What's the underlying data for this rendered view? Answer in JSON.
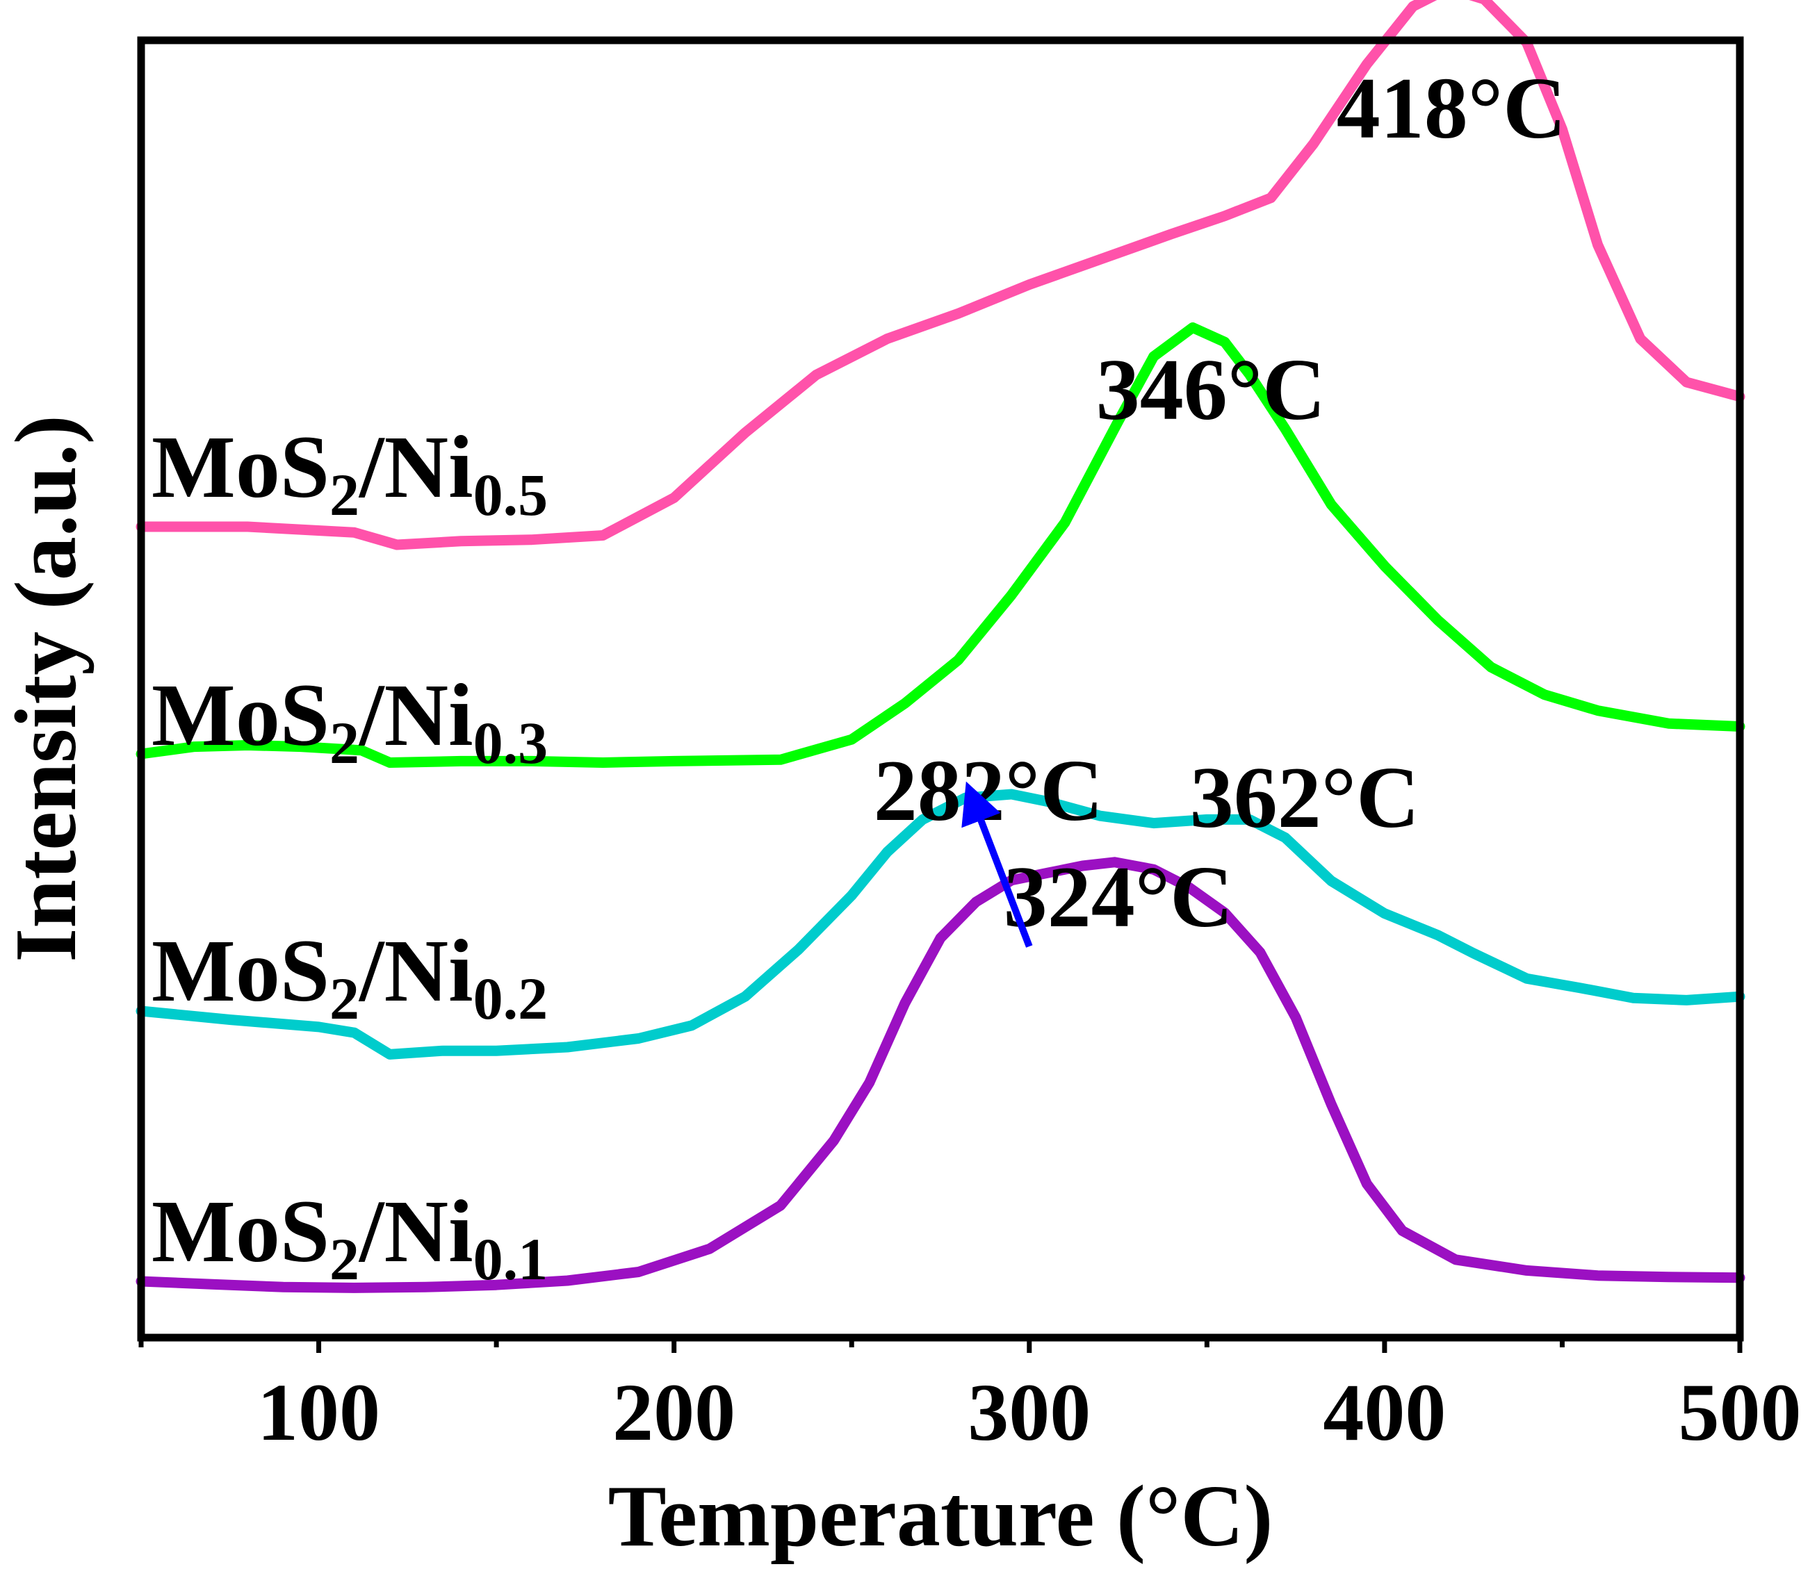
{
  "chart_data": {
    "type": "line",
    "title": "",
    "xlabel": "Temperature (°C)",
    "ylabel": "Intensity (a.u.)",
    "xlim": [
      50,
      500
    ],
    "x_ticks": [
      100,
      200,
      300,
      400,
      500
    ],
    "x_tick_labels": [
      "100",
      "200",
      "300",
      "400",
      "500"
    ],
    "y_ticks_shown": false,
    "grid": false,
    "series": [
      {
        "name": "MoS2/Ni0.1",
        "label_main": "MoS",
        "label_sub1": "2",
        "label_mid": "/Ni",
        "label_sub2": "0.1",
        "color": "#9B10C2",
        "points": [
          [
            50,
            0.25
          ],
          [
            70,
            0.21
          ],
          [
            90,
            0.17
          ],
          [
            110,
            0.16
          ],
          [
            130,
            0.17
          ],
          [
            150,
            0.2
          ],
          [
            170,
            0.26
          ],
          [
            190,
            0.38
          ],
          [
            210,
            0.7
          ],
          [
            230,
            1.3
          ],
          [
            245,
            2.2
          ],
          [
            255,
            3.0
          ],
          [
            265,
            4.1
          ],
          [
            275,
            5.0
          ],
          [
            285,
            5.5
          ],
          [
            295,
            5.8
          ],
          [
            305,
            5.9
          ],
          [
            315,
            6.0
          ],
          [
            324,
            6.05
          ],
          [
            335,
            5.95
          ],
          [
            345,
            5.7
          ],
          [
            355,
            5.35
          ],
          [
            365,
            4.8
          ],
          [
            375,
            3.9
          ],
          [
            385,
            2.7
          ],
          [
            395,
            1.6
          ],
          [
            405,
            0.95
          ],
          [
            420,
            0.55
          ],
          [
            440,
            0.4
          ],
          [
            460,
            0.33
          ],
          [
            480,
            0.31
          ],
          [
            500,
            0.3
          ]
        ]
      },
      {
        "name": "MoS2/Ni0.2",
        "label_main": "MoS",
        "label_sub1": "2",
        "label_mid": "/Ni",
        "label_sub2": "0.2",
        "color": "#00CCCC",
        "points": [
          [
            50,
            0
          ],
          [
            75,
            -0.12
          ],
          [
            100,
            -0.22
          ],
          [
            110,
            -0.3
          ],
          [
            120,
            -0.6
          ],
          [
            135,
            -0.55
          ],
          [
            150,
            -0.55
          ],
          [
            170,
            -0.5
          ],
          [
            190,
            -0.38
          ],
          [
            205,
            -0.2
          ],
          [
            220,
            0.2
          ],
          [
            235,
            0.85
          ],
          [
            250,
            1.6
          ],
          [
            260,
            2.2
          ],
          [
            270,
            2.65
          ],
          [
            282,
            2.95
          ],
          [
            295,
            3.0
          ],
          [
            305,
            2.9
          ],
          [
            320,
            2.7
          ],
          [
            335,
            2.6
          ],
          [
            350,
            2.65
          ],
          [
            362,
            2.65
          ],
          [
            372,
            2.4
          ],
          [
            385,
            1.8
          ],
          [
            400,
            1.35
          ],
          [
            415,
            1.05
          ],
          [
            425,
            0.8
          ],
          [
            440,
            0.45
          ],
          [
            455,
            0.32
          ],
          [
            470,
            0.18
          ],
          [
            485,
            0.15
          ],
          [
            500,
            0.2
          ]
        ]
      },
      {
        "name": "MoS2/Ni0.3",
        "label_main": "MoS",
        "label_sub1": "2",
        "label_mid": "/Ni",
        "label_sub2": "0.3",
        "color": "#00FF00",
        "points": [
          [
            50,
            0
          ],
          [
            65,
            0.1
          ],
          [
            80,
            0.12
          ],
          [
            95,
            0.1
          ],
          [
            112,
            0.05
          ],
          [
            120,
            -0.12
          ],
          [
            140,
            -0.1
          ],
          [
            160,
            -0.1
          ],
          [
            180,
            -0.12
          ],
          [
            200,
            -0.1
          ],
          [
            230,
            -0.08
          ],
          [
            250,
            0.2
          ],
          [
            265,
            0.7
          ],
          [
            280,
            1.3
          ],
          [
            295,
            2.2
          ],
          [
            310,
            3.2
          ],
          [
            325,
            4.6
          ],
          [
            335,
            5.5
          ],
          [
            346,
            5.9
          ],
          [
            355,
            5.7
          ],
          [
            362,
            5.25
          ],
          [
            372,
            4.5
          ],
          [
            385,
            3.45
          ],
          [
            400,
            2.6
          ],
          [
            415,
            1.85
          ],
          [
            430,
            1.2
          ],
          [
            445,
            0.82
          ],
          [
            460,
            0.6
          ],
          [
            480,
            0.42
          ],
          [
            500,
            0.38
          ]
        ]
      },
      {
        "name": "MoS2/Ni0.5",
        "label_main": "MoS",
        "label_sub1": "2",
        "label_mid": "/Ni",
        "label_sub2": "0.5",
        "color": "#FF52AA",
        "points": [
          [
            50,
            0
          ],
          [
            80,
            0
          ],
          [
            110,
            -0.08
          ],
          [
            122,
            -0.25
          ],
          [
            140,
            -0.2
          ],
          [
            160,
            -0.18
          ],
          [
            180,
            -0.12
          ],
          [
            200,
            0.4
          ],
          [
            220,
            1.3
          ],
          [
            240,
            2.1
          ],
          [
            260,
            2.6
          ],
          [
            280,
            2.95
          ],
          [
            300,
            3.35
          ],
          [
            320,
            3.7
          ],
          [
            340,
            4.05
          ],
          [
            355,
            4.3
          ],
          [
            368,
            4.55
          ],
          [
            380,
            5.3
          ],
          [
            395,
            6.4
          ],
          [
            408,
            7.2
          ],
          [
            418,
            7.45
          ],
          [
            428,
            7.3
          ],
          [
            440,
            6.7
          ],
          [
            450,
            5.5
          ],
          [
            460,
            3.9
          ],
          [
            472,
            2.6
          ],
          [
            485,
            2.0
          ],
          [
            500,
            1.8
          ]
        ]
      }
    ],
    "annotations": [
      {
        "text": "418°C",
        "x": 418
      },
      {
        "text": "346°C",
        "x": 346
      },
      {
        "text": "282°C",
        "x": 282
      },
      {
        "text": "362°C",
        "x": 362
      },
      {
        "text": "324°C",
        "x": 324
      }
    ],
    "arrow": {
      "from_x": 300,
      "to_x": 282,
      "color": "#0000FF"
    }
  }
}
